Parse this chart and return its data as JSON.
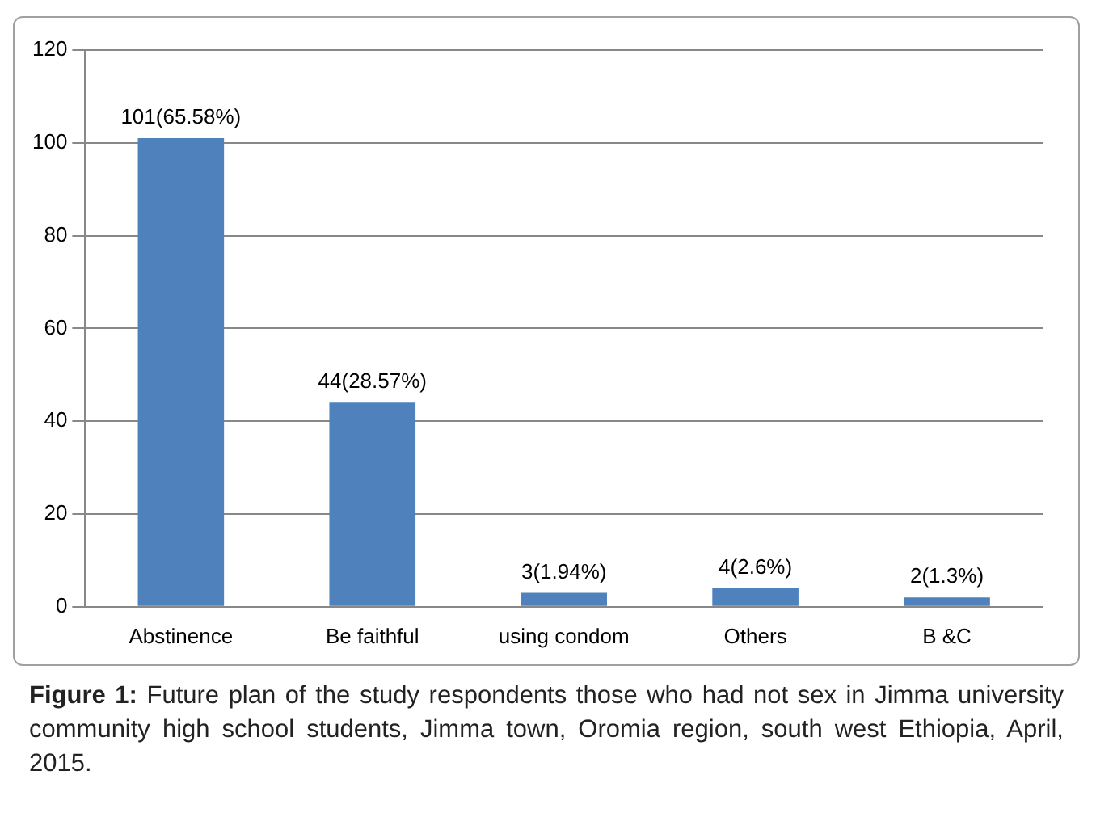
{
  "chart_data": {
    "type": "bar",
    "categories": [
      "Abstinence",
      "Be faithful",
      "using condom",
      "Others",
      "B &C"
    ],
    "values": [
      101,
      44,
      3,
      4,
      2
    ],
    "value_labels": [
      "101(65.58%)",
      "44(28.57%)",
      "3(1.94%)",
      "4(2.6%)",
      "2(1.3%)"
    ],
    "color": "#4f81bd",
    "ylim": [
      0,
      120
    ],
    "yticks": [
      0,
      20,
      40,
      60,
      80,
      100,
      120
    ],
    "grid": "y",
    "legend": false,
    "annotations": [
      "Figure 1: Future plan of the study respondents those who had not sex in Jimma university community high school students, Jimma town, Oromia region, south west Ethiopia, April, 2015."
    ]
  }
}
